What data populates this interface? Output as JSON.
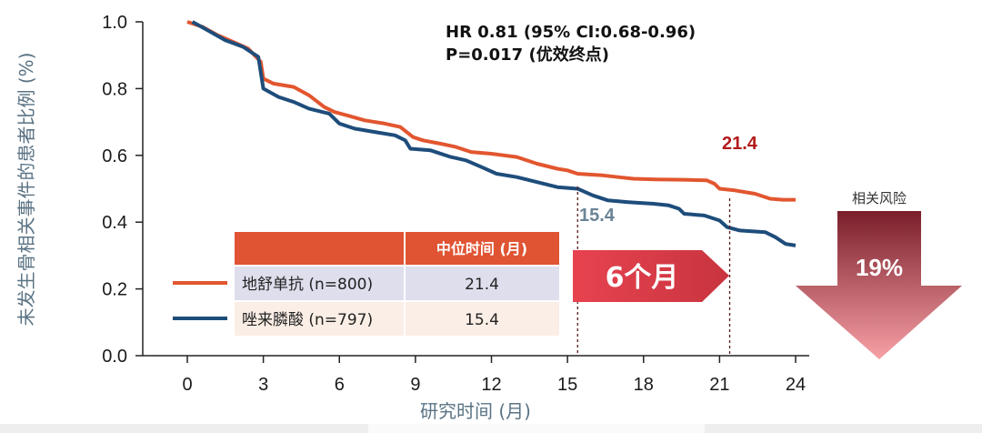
{
  "chart_data": {
    "type": "line",
    "xlabel": "研究时间 (月)",
    "ylabel": "未发生骨相关事件的患者比例 (%)",
    "xlim": [
      0,
      24
    ],
    "ylim": [
      0,
      1.0
    ],
    "x_ticks": [
      0,
      3,
      6,
      9,
      12,
      15,
      18,
      21,
      24
    ],
    "y_ticks": [
      "0.0",
      "0.2",
      "0.4",
      "0.6",
      "0.8",
      "1.0"
    ],
    "grid": false,
    "legend_position": "bottom-left",
    "series": [
      {
        "name": "地舒单抗 (n=800)",
        "color": "#e2562f",
        "points": [
          [
            0,
            1.0
          ],
          [
            0.6,
            0.985
          ],
          [
            1.2,
            0.96
          ],
          [
            1.8,
            0.94
          ],
          [
            2.4,
            0.92
          ],
          [
            2.9,
            0.88
          ],
          [
            3.0,
            0.83
          ],
          [
            3.4,
            0.815
          ],
          [
            4.2,
            0.805
          ],
          [
            4.8,
            0.78
          ],
          [
            5.4,
            0.745
          ],
          [
            5.8,
            0.73
          ],
          [
            6.3,
            0.72
          ],
          [
            7.0,
            0.705
          ],
          [
            7.8,
            0.695
          ],
          [
            8.4,
            0.685
          ],
          [
            8.9,
            0.655
          ],
          [
            9.3,
            0.645
          ],
          [
            10.0,
            0.635
          ],
          [
            10.6,
            0.625
          ],
          [
            11.2,
            0.61
          ],
          [
            12.0,
            0.605
          ],
          [
            13.0,
            0.595
          ],
          [
            13.8,
            0.575
          ],
          [
            14.6,
            0.56
          ],
          [
            15.0,
            0.555
          ],
          [
            15.4,
            0.545
          ],
          [
            16.4,
            0.54
          ],
          [
            17.0,
            0.535
          ],
          [
            17.6,
            0.53
          ],
          [
            18.5,
            0.528
          ],
          [
            19.6,
            0.527
          ],
          [
            20.5,
            0.525
          ],
          [
            20.8,
            0.515
          ],
          [
            21.0,
            0.5
          ],
          [
            21.6,
            0.495
          ],
          [
            22.4,
            0.485
          ],
          [
            23.0,
            0.47
          ],
          [
            23.5,
            0.467
          ],
          [
            24,
            0.467
          ]
        ]
      },
      {
        "name": "唑来膦酸 (n=797)",
        "color": "#1e4d7b",
        "points": [
          [
            0.2,
            1.0
          ],
          [
            0.8,
            0.975
          ],
          [
            1.5,
            0.945
          ],
          [
            2.2,
            0.925
          ],
          [
            2.8,
            0.895
          ],
          [
            3.0,
            0.8
          ],
          [
            3.6,
            0.775
          ],
          [
            4.2,
            0.76
          ],
          [
            4.8,
            0.74
          ],
          [
            5.6,
            0.725
          ],
          [
            6.0,
            0.695
          ],
          [
            6.6,
            0.68
          ],
          [
            7.4,
            0.67
          ],
          [
            8.2,
            0.66
          ],
          [
            8.6,
            0.645
          ],
          [
            8.8,
            0.62
          ],
          [
            9.6,
            0.615
          ],
          [
            10.4,
            0.595
          ],
          [
            11.0,
            0.585
          ],
          [
            11.6,
            0.565
          ],
          [
            12.2,
            0.545
          ],
          [
            13.0,
            0.535
          ],
          [
            13.8,
            0.52
          ],
          [
            14.6,
            0.505
          ],
          [
            15.4,
            0.5
          ],
          [
            16.0,
            0.48
          ],
          [
            16.6,
            0.465
          ],
          [
            17.4,
            0.46
          ],
          [
            18.4,
            0.455
          ],
          [
            19.0,
            0.45
          ],
          [
            19.4,
            0.44
          ],
          [
            19.6,
            0.425
          ],
          [
            20.4,
            0.42
          ],
          [
            21.0,
            0.405
          ],
          [
            21.3,
            0.385
          ],
          [
            21.8,
            0.375
          ],
          [
            22.8,
            0.37
          ],
          [
            23.2,
            0.355
          ],
          [
            23.6,
            0.335
          ],
          [
            24,
            0.33
          ]
        ]
      }
    ],
    "annotations": {
      "hr_line1": "HR 0.81 (95% CI:0.68-0.96)",
      "hr_line2": "P=0.017 (优效终点)",
      "median_denosumab": "21.4",
      "median_zoledronic": "15.4",
      "median_denosumab_x": 21.4,
      "median_zoledronic_x": 15.4,
      "median_denosumab_color": "#b31b1b",
      "median_zoledronic_color": "#6b8496",
      "difference_label": "6个月",
      "risk_label": "相关风险",
      "risk_value": "19%"
    }
  },
  "table": {
    "header": "中位时间 (月)",
    "rows": [
      {
        "label": "地舒单抗 (n=800)",
        "value": "21.4",
        "color": "#e2562f"
      },
      {
        "label": "唑来膦酸 (n=797)",
        "value": "15.4",
        "color": "#1e4d7b"
      }
    ]
  },
  "colors": {
    "table_header": "#e05433",
    "table_row1": "#dedeed",
    "table_row2": "#fbeee6",
    "arrow_fill": "#e3505a",
    "risk_arrow_top": "#7a1f2b",
    "risk_arrow_bottom": "#f3838a"
  }
}
